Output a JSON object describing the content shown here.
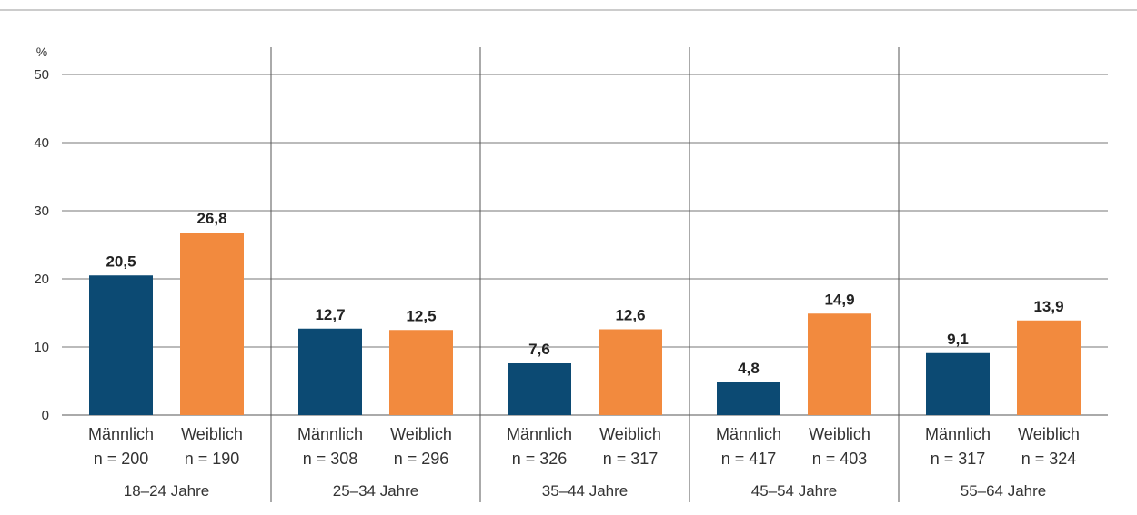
{
  "chart_data": {
    "type": "bar",
    "unit_label": "%",
    "ylim": [
      0,
      50
    ],
    "yticks": [
      "0",
      "10",
      "20",
      "30",
      "40",
      "50"
    ],
    "grid": true,
    "colors": {
      "male": "#0c4a73",
      "female": "#f28a3e"
    },
    "groups": [
      {
        "label": "18–24 Jahre",
        "bars": [
          {
            "sex": "Männlich",
            "n": "n = 200",
            "value": 20.5,
            "value_label": "20,5",
            "series": "male"
          },
          {
            "sex": "Weiblich",
            "n": "n = 190",
            "value": 26.8,
            "value_label": "26,8",
            "series": "female"
          }
        ]
      },
      {
        "label": "25–34 Jahre",
        "bars": [
          {
            "sex": "Männlich",
            "n": "n = 308",
            "value": 12.7,
            "value_label": "12,7",
            "series": "male"
          },
          {
            "sex": "Weiblich",
            "n": "n = 296",
            "value": 12.5,
            "value_label": "12,5",
            "series": "female"
          }
        ]
      },
      {
        "label": "35–44 Jahre",
        "bars": [
          {
            "sex": "Männlich",
            "n": "n = 326",
            "value": 7.6,
            "value_label": "7,6",
            "series": "male"
          },
          {
            "sex": "Weiblich",
            "n": "n = 317",
            "value": 12.6,
            "value_label": "12,6",
            "series": "female"
          }
        ]
      },
      {
        "label": "45–54 Jahre",
        "bars": [
          {
            "sex": "Männlich",
            "n": "n = 417",
            "value": 4.8,
            "value_label": "4,8",
            "series": "male"
          },
          {
            "sex": "Weiblich",
            "n": "n = 403",
            "value": 14.9,
            "value_label": "14,9",
            "series": "female"
          }
        ]
      },
      {
        "label": "55–64 Jahre",
        "bars": [
          {
            "sex": "Männlich",
            "n": "n = 317",
            "value": 9.1,
            "value_label": "9,1",
            "series": "male"
          },
          {
            "sex": "Weiblich",
            "n": "n = 324",
            "value": 13.9,
            "value_label": "13,9",
            "series": "female"
          }
        ]
      }
    ]
  }
}
